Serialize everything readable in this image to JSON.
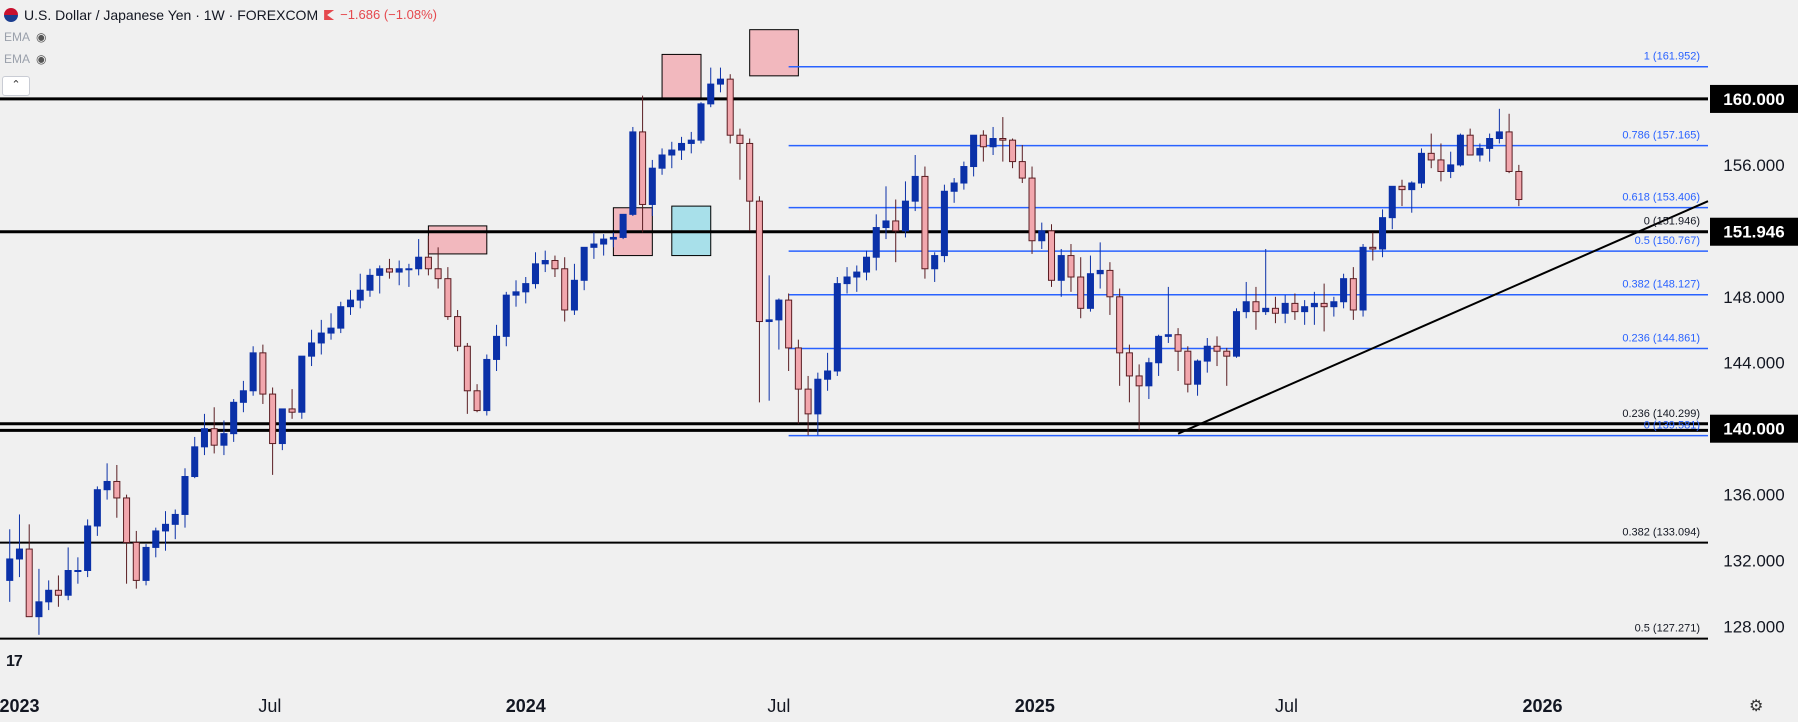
{
  "header": {
    "title": "U.S. Dollar / Japanese Yen · 1W · FOREXCOM",
    "change": "−1.686 (−1.08%)",
    "indicators": [
      "EMA",
      "EMA"
    ],
    "collapse_icon": "chevron-up-icon"
  },
  "colors": {
    "up": "#0b31a8",
    "down": "#f2a7ad",
    "down_border": "#5a1d22",
    "fib": "#2962ff",
    "level": "#000000",
    "zone_red": "#f2b8be",
    "zone_blue": "#a8e0ea"
  },
  "chart_data": {
    "type": "candlestick",
    "timeframe": "1W",
    "x_range": [
      "2022-12-19",
      "2026-04-30"
    ],
    "ylim": [
      126.7,
      166.0
    ],
    "x_ticks": [
      {
        "date": "2023-01-02",
        "label": "2023",
        "bold": true
      },
      {
        "date": "2023-07-01",
        "label": "Jul",
        "bold": false
      },
      {
        "date": "2024-01-01",
        "label": "2024",
        "bold": true
      },
      {
        "date": "2024-07-01",
        "label": "Jul",
        "bold": false
      },
      {
        "date": "2025-01-01",
        "label": "2025",
        "bold": true
      },
      {
        "date": "2025-07-01",
        "label": "Jul",
        "bold": false
      },
      {
        "date": "2026-01-01",
        "label": "2026",
        "bold": true
      }
    ],
    "y_ticks": [
      "128.000",
      "132.000",
      "136.000",
      "140.000",
      "144.000",
      "148.000",
      "151.946",
      "156.000",
      "160.000"
    ],
    "y_ticks_highlighted": [
      "140.000",
      "151.946",
      "160.000"
    ],
    "horizontal_levels": [
      160.0,
      151.946,
      140.3,
      139.9,
      133.094,
      127.271
    ],
    "fib_retracements": [
      {
        "label": "1 (161.952)",
        "price": 161.952
      },
      {
        "label": "0.786 (157.165)",
        "price": 157.165
      },
      {
        "label": "0.618 (153.406)",
        "price": 153.406
      },
      {
        "label": "0 (151.946)",
        "price": 151.946
      },
      {
        "label": "0.5 (150.767)",
        "price": 150.767
      },
      {
        "label": "0.382 (148.127)",
        "price": 148.127
      },
      {
        "label": "0.236 (144.861)",
        "price": 144.861
      },
      {
        "label": "0.236 (140.299)",
        "price": 140.299
      },
      {
        "label": "0 (139.581)",
        "price": 139.581
      }
    ],
    "static_labels": [
      {
        "label": "0.382 (133.094)",
        "price": 133.094
      },
      {
        "label": "0.5 (127.271)",
        "price": 127.271
      }
    ],
    "trendline": [
      {
        "date": "2025-04-14",
        "price": 139.7
      },
      {
        "date": "2026-04-30",
        "price": 153.8
      }
    ],
    "zones": [
      {
        "color": "red",
        "start": "2023-10-23",
        "end": "2023-12-04",
        "high": 152.3,
        "low": 150.6
      },
      {
        "color": "red",
        "start": "2024-03-04",
        "end": "2024-04-01",
        "high": 153.4,
        "low": 150.5
      },
      {
        "color": "blue",
        "start": "2024-04-15",
        "end": "2024-05-13",
        "high": 153.5,
        "low": 150.5
      },
      {
        "color": "red",
        "start": "2024-04-08",
        "end": "2024-05-06",
        "high": 162.7,
        "low": 160.0
      },
      {
        "color": "red",
        "start": "2024-06-10",
        "end": "2024-07-15",
        "high": 164.2,
        "low": 161.4
      }
    ],
    "candles": [
      [
        130.8,
        133.9,
        129.5,
        132.1
      ],
      [
        132.1,
        134.8,
        131.0,
        132.7
      ],
      [
        132.7,
        134.2,
        128.9,
        128.6
      ],
      [
        128.6,
        131.5,
        127.5,
        129.5
      ],
      [
        129.5,
        130.8,
        129.0,
        130.2
      ],
      [
        130.2,
        131.1,
        129.2,
        129.9
      ],
      [
        129.9,
        132.8,
        129.6,
        131.4
      ],
      [
        131.4,
        132.2,
        130.6,
        131.4
      ],
      [
        131.4,
        134.5,
        131.0,
        134.1
      ],
      [
        134.1,
        136.5,
        133.5,
        136.3
      ],
      [
        136.3,
        137.9,
        135.7,
        136.8
      ],
      [
        136.8,
        137.8,
        134.6,
        135.8
      ],
      [
        135.8,
        136.0,
        130.6,
        133.1
      ],
      [
        133.1,
        133.8,
        130.3,
        130.8
      ],
      [
        130.8,
        133.0,
        130.5,
        132.8
      ],
      [
        132.8,
        134.0,
        132.2,
        133.8
      ],
      [
        133.8,
        135.0,
        132.6,
        134.2
      ],
      [
        134.2,
        135.1,
        133.3,
        134.8
      ],
      [
        134.8,
        137.6,
        134.0,
        137.1
      ],
      [
        137.1,
        139.5,
        137.0,
        138.9
      ],
      [
        138.9,
        140.9,
        138.4,
        140.0
      ],
      [
        140.0,
        141.3,
        138.5,
        139.0
      ],
      [
        139.0,
        140.5,
        138.4,
        139.7
      ],
      [
        139.7,
        141.8,
        139.2,
        141.6
      ],
      [
        141.6,
        142.9,
        141.0,
        142.3
      ],
      [
        142.3,
        145.0,
        142.0,
        144.6
      ],
      [
        144.6,
        145.1,
        141.5,
        142.1
      ],
      [
        142.1,
        142.5,
        137.2,
        139.1
      ],
      [
        139.1,
        141.1,
        138.7,
        141.2
      ],
      [
        141.2,
        142.4,
        140.6,
        141.0
      ],
      [
        141.0,
        144.3,
        140.6,
        144.4
      ],
      [
        144.4,
        146.0,
        143.8,
        145.2
      ],
      [
        145.2,
        146.6,
        144.5,
        145.8
      ],
      [
        145.8,
        147.0,
        145.4,
        146.1
      ],
      [
        146.1,
        147.7,
        145.8,
        147.4
      ],
      [
        147.4,
        148.4,
        146.9,
        147.8
      ],
      [
        147.8,
        149.4,
        147.3,
        148.4
      ],
      [
        148.4,
        149.7,
        148.0,
        149.3
      ],
      [
        149.3,
        149.9,
        148.2,
        149.7
      ],
      [
        149.7,
        150.3,
        149.1,
        149.5
      ],
      [
        149.5,
        150.2,
        148.7,
        149.7
      ],
      [
        149.7,
        150.0,
        148.6,
        149.7
      ],
      [
        149.7,
        151.5,
        149.3,
        150.4
      ],
      [
        150.4,
        151.7,
        149.3,
        149.7
      ],
      [
        149.7,
        151.0,
        148.5,
        149.1
      ],
      [
        149.1,
        149.8,
        146.6,
        146.8
      ],
      [
        146.8,
        147.2,
        144.7,
        145.0
      ],
      [
        145.0,
        145.2,
        140.9,
        142.3
      ],
      [
        142.3,
        142.7,
        141.0,
        141.1
      ],
      [
        141.1,
        144.5,
        140.8,
        144.2
      ],
      [
        144.2,
        146.3,
        143.5,
        145.6
      ],
      [
        145.6,
        148.3,
        145.0,
        148.1
      ],
      [
        148.1,
        149.0,
        147.4,
        148.3
      ],
      [
        148.3,
        149.2,
        147.6,
        148.8
      ],
      [
        148.8,
        150.7,
        148.5,
        150.0
      ],
      [
        150.0,
        150.8,
        149.5,
        150.2
      ],
      [
        150.2,
        150.5,
        149.2,
        149.7
      ],
      [
        149.7,
        150.4,
        146.5,
        147.2
      ],
      [
        147.2,
        150.0,
        146.9,
        149.0
      ],
      [
        149.0,
        150.8,
        148.4,
        151.0
      ],
      [
        151.0,
        151.9,
        150.3,
        151.2
      ],
      [
        151.2,
        151.8,
        150.5,
        151.5
      ],
      [
        151.5,
        151.9,
        151.0,
        151.6
      ],
      [
        151.6,
        153.0,
        151.5,
        153.0
      ],
      [
        153.0,
        158.3,
        152.9,
        158.0
      ],
      [
        158.0,
        160.2,
        151.9,
        153.6
      ],
      [
        153.6,
        156.3,
        152.9,
        155.8
      ],
      [
        155.8,
        157.0,
        155.4,
        156.6
      ],
      [
        156.6,
        157.4,
        155.8,
        156.9
      ],
      [
        156.9,
        157.7,
        156.3,
        157.3
      ],
      [
        157.3,
        158.0,
        156.7,
        157.5
      ],
      [
        157.5,
        159.8,
        157.3,
        159.7
      ],
      [
        159.7,
        161.9,
        159.5,
        160.9
      ],
      [
        160.9,
        161.9,
        160.4,
        161.2
      ],
      [
        161.2,
        161.5,
        157.3,
        157.8
      ],
      [
        157.8,
        158.2,
        155.1,
        157.3
      ],
      [
        157.3,
        157.6,
        152.0,
        153.8
      ],
      [
        153.8,
        154.1,
        141.6,
        146.5
      ],
      [
        146.5,
        149.3,
        141.7,
        146.6
      ],
      [
        146.6,
        147.9,
        144.8,
        147.8
      ],
      [
        147.8,
        148.2,
        143.5,
        144.9
      ],
      [
        144.9,
        145.4,
        140.3,
        142.4
      ],
      [
        142.4,
        143.2,
        139.6,
        140.9
      ],
      [
        140.9,
        143.4,
        139.6,
        143.0
      ],
      [
        143.0,
        144.6,
        142.3,
        143.5
      ],
      [
        143.5,
        149.2,
        143.2,
        148.8
      ],
      [
        148.8,
        149.8,
        148.2,
        149.2
      ],
      [
        149.2,
        149.9,
        148.3,
        149.5
      ],
      [
        149.5,
        150.8,
        149.0,
        150.4
      ],
      [
        150.4,
        153.0,
        149.6,
        152.2
      ],
      [
        152.2,
        154.7,
        151.5,
        152.6
      ],
      [
        152.6,
        153.9,
        150.1,
        152.0
      ],
      [
        152.0,
        155.0,
        151.6,
        153.8
      ],
      [
        153.8,
        156.6,
        153.2,
        155.3
      ],
      [
        155.3,
        155.9,
        149.1,
        149.7
      ],
      [
        149.7,
        150.7,
        148.9,
        150.5
      ],
      [
        150.5,
        154.8,
        150.1,
        154.4
      ],
      [
        154.4,
        155.2,
        153.7,
        154.9
      ],
      [
        154.9,
        156.2,
        154.5,
        155.9
      ],
      [
        155.9,
        157.8,
        155.3,
        157.8
      ],
      [
        157.8,
        158.1,
        156.2,
        157.1
      ],
      [
        157.1,
        158.3,
        156.6,
        157.6
      ],
      [
        157.6,
        158.9,
        156.2,
        157.5
      ],
      [
        157.5,
        157.6,
        155.8,
        156.2
      ],
      [
        156.2,
        157.2,
        154.9,
        155.2
      ],
      [
        155.2,
        155.9,
        150.6,
        151.4
      ],
      [
        151.4,
        152.5,
        150.9,
        152.0
      ],
      [
        152.0,
        152.4,
        148.6,
        149.0
      ],
      [
        149.0,
        150.9,
        148.0,
        150.5
      ],
      [
        150.5,
        151.2,
        148.3,
        149.2
      ],
      [
        149.2,
        150.4,
        146.7,
        147.3
      ],
      [
        147.3,
        150.5,
        147.1,
        149.4
      ],
      [
        149.4,
        151.3,
        148.5,
        149.6
      ],
      [
        149.6,
        150.1,
        146.9,
        148.0
      ],
      [
        148.0,
        148.5,
        142.6,
        144.6
      ],
      [
        144.6,
        145.1,
        141.6,
        143.2
      ],
      [
        143.2,
        143.9,
        139.9,
        142.6
      ],
      [
        142.6,
        144.3,
        141.8,
        144.0
      ],
      [
        144.0,
        145.7,
        143.2,
        145.6
      ],
      [
        145.6,
        148.6,
        145.2,
        145.7
      ],
      [
        145.7,
        146.1,
        143.5,
        144.7
      ],
      [
        144.7,
        145.0,
        142.2,
        142.7
      ],
      [
        142.7,
        144.2,
        142.0,
        144.1
      ],
      [
        144.1,
        145.5,
        143.4,
        145.0
      ],
      [
        145.0,
        145.6,
        143.8,
        144.7
      ],
      [
        144.7,
        144.9,
        142.6,
        144.4
      ],
      [
        144.4,
        147.3,
        144.3,
        147.1
      ],
      [
        147.1,
        148.9,
        146.7,
        147.7
      ],
      [
        147.7,
        148.6,
        146.0,
        147.1
      ],
      [
        147.1,
        150.9,
        146.9,
        147.3
      ],
      [
        147.3,
        148.0,
        146.4,
        147.0
      ],
      [
        147.0,
        148.1,
        146.4,
        147.6
      ],
      [
        147.6,
        148.2,
        146.6,
        147.1
      ],
      [
        147.1,
        147.8,
        146.3,
        147.4
      ],
      [
        147.4,
        148.3,
        146.3,
        147.6
      ],
      [
        147.6,
        148.8,
        145.9,
        147.4
      ],
      [
        147.4,
        148.0,
        146.8,
        147.7
      ],
      [
        147.7,
        149.4,
        147.3,
        149.1
      ],
      [
        149.1,
        149.8,
        146.6,
        147.2
      ],
      [
        147.2,
        151.2,
        146.8,
        151.0
      ],
      [
        151.0,
        151.9,
        150.2,
        150.9
      ],
      [
        150.9,
        153.3,
        150.4,
        152.8
      ],
      [
        152.8,
        154.7,
        152.1,
        154.7
      ],
      [
        154.7,
        155.1,
        153.5,
        154.5
      ],
      [
        154.5,
        155.0,
        153.1,
        154.9
      ],
      [
        154.9,
        157.0,
        154.6,
        156.7
      ],
      [
        156.7,
        157.9,
        155.8,
        156.3
      ],
      [
        156.3,
        157.3,
        155.0,
        155.6
      ],
      [
        155.6,
        156.8,
        155.2,
        156.0
      ],
      [
        156.0,
        157.9,
        155.9,
        157.8
      ],
      [
        157.8,
        158.2,
        156.7,
        156.6
      ],
      [
        156.6,
        157.3,
        156.2,
        157.0
      ],
      [
        157.0,
        157.9,
        156.2,
        157.6
      ],
      [
        157.6,
        159.4,
        157.3,
        158.0
      ],
      [
        158.0,
        159.1,
        155.5,
        155.6
      ],
      [
        155.6,
        156.0,
        153.5,
        153.9
      ]
    ]
  }
}
